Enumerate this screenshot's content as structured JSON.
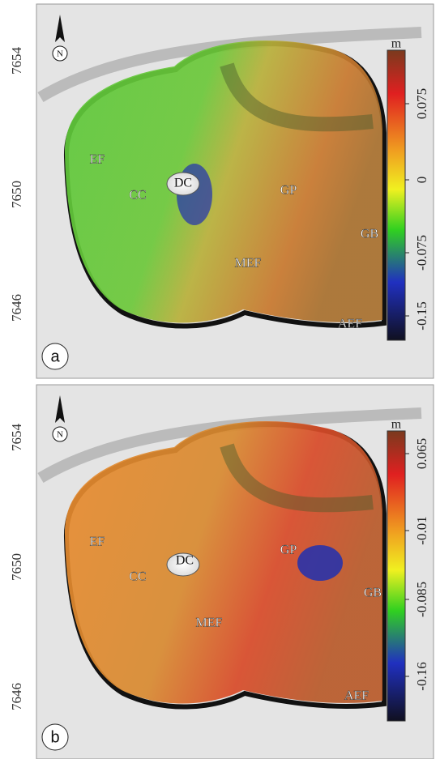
{
  "panels": [
    {
      "label": "a",
      "north": "N",
      "y_labels": [
        7654,
        7650,
        7646
      ],
      "colorbar": {
        "unit": "m",
        "ticks": [
          0.075,
          0,
          -0.075,
          -0.15
        ]
      },
      "places": [
        "EF",
        "CC",
        "DC",
        "GP",
        "GB",
        "MEF",
        "AEF"
      ]
    },
    {
      "label": "b",
      "north": "N",
      "y_labels": [
        7654,
        7650,
        7646
      ],
      "colorbar": {
        "unit": "m",
        "ticks": [
          0.065,
          -0.01,
          -0.085,
          -0.16
        ]
      },
      "places": [
        "EF",
        "CC",
        "DC",
        "GP",
        "GB",
        "MEF",
        "AEF"
      ]
    }
  ]
}
